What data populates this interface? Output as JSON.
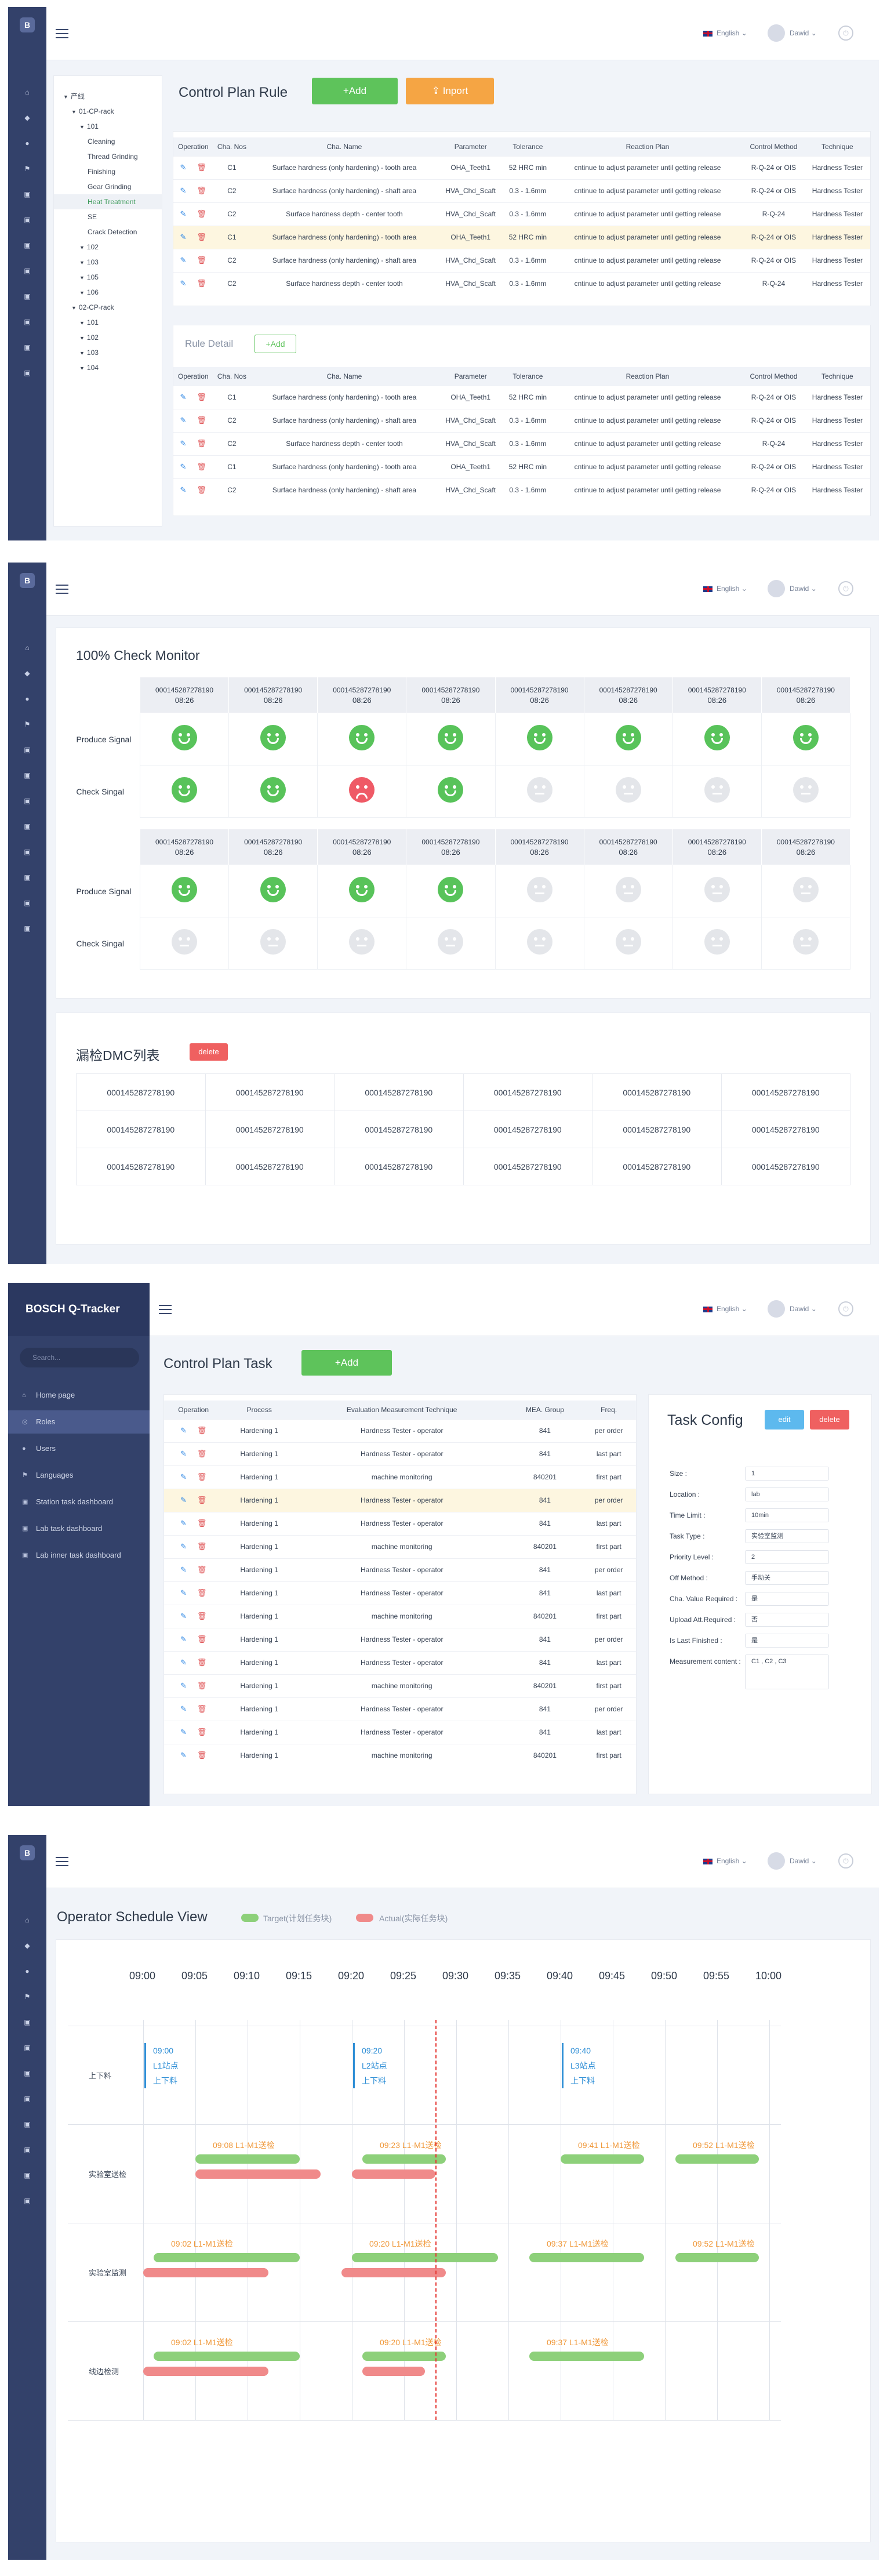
{
  "topbar": {
    "language": "English",
    "user": "Dawid"
  },
  "s1": {
    "title": "Control Plan Rule",
    "add_label": "+Add",
    "import_label": "Inport",
    "tree": [
      "产线",
      "01-CP-rack",
      "101",
      "Cleaning",
      "Thread Grinding",
      "Finishing",
      "Gear Grinding",
      "Heat Treatment",
      "SE",
      "Crack Detection",
      "102",
      "103",
      "105",
      "106",
      "02-CP-rack",
      "101",
      "102",
      "103",
      "104"
    ],
    "columns": [
      "Operation",
      "Cha. Nos",
      "Cha. Name",
      "Parameter",
      "Tolerance",
      "Reaction Plan",
      "Control Method",
      "Technique"
    ],
    "rows": [
      [
        "C1",
        "Surface hardness (only hardening) - tooth area",
        "OHA_Teeth1",
        "52 HRC min",
        "cntinue to adjust parameter until getting release",
        "R-Q-24 or OIS",
        "Hardness Tester"
      ],
      [
        "C2",
        "Surface hardness (only hardening) - shaft area",
        "HVA_Chd_Scaft",
        "0.3 - 1.6mm",
        "cntinue to adjust parameter until getting release",
        "R-Q-24 or OIS",
        "Hardness Tester"
      ],
      [
        "C2",
        "Surface hardness depth - center tooth",
        "HVA_Chd_Scaft",
        "0.3 - 1.6mm",
        "cntinue to adjust parameter until getting release",
        "R-Q-24",
        "Hardness Tester"
      ],
      [
        "C1",
        "Surface hardness (only hardening) - tooth area",
        "OHA_Teeth1",
        "52 HRC min",
        "cntinue to adjust parameter until getting release",
        "R-Q-24 or OIS",
        "Hardness Tester"
      ],
      [
        "C2",
        "Surface hardness (only hardening) - shaft area",
        "HVA_Chd_Scaft",
        "0.3 - 1.6mm",
        "cntinue to adjust parameter until getting release",
        "R-Q-24 or OIS",
        "Hardness Tester"
      ],
      [
        "C2",
        "Surface hardness depth - center tooth",
        "HVA_Chd_Scaft",
        "0.3 - 1.6mm",
        "cntinue to adjust parameter until getting release",
        "R-Q-24",
        "Hardness Tester"
      ]
    ],
    "detail_title": "Rule Detail",
    "detail_add": "+Add",
    "detail_rows": [
      [
        "C1",
        "Surface hardness (only hardening) - tooth area",
        "OHA_Teeth1",
        "52 HRC min",
        "cntinue to adjust parameter until getting release",
        "R-Q-24 or OIS",
        "Hardness Tester"
      ],
      [
        "C2",
        "Surface hardness (only hardening) - shaft area",
        "HVA_Chd_Scaft",
        "0.3 - 1.6mm",
        "cntinue to adjust parameter until getting release",
        "R-Q-24 or OIS",
        "Hardness Tester"
      ],
      [
        "C2",
        "Surface hardness depth - center tooth",
        "HVA_Chd_Scaft",
        "0.3 - 1.6mm",
        "cntinue to adjust parameter until getting release",
        "R-Q-24",
        "Hardness Tester"
      ],
      [
        "C1",
        "Surface hardness (only hardening) - tooth area",
        "OHA_Teeth1",
        "52 HRC min",
        "cntinue to adjust parameter until getting release",
        "R-Q-24 or OIS",
        "Hardness Tester"
      ],
      [
        "C2",
        "Surface hardness (only hardening) - shaft area",
        "HVA_Chd_Scaft",
        "0.3 - 1.6mm",
        "cntinue to adjust parameter until getting release",
        "R-Q-24 or OIS",
        "Hardness Tester"
      ]
    ]
  },
  "s2": {
    "title": "100% Check Monitor",
    "dmc": "000145287278190",
    "time": "08:26",
    "produce_label": "Produce Signal",
    "check_label": "Check Singal",
    "grid1": {
      "produce": [
        "g",
        "g",
        "g",
        "g",
        "g",
        "g",
        "g",
        "g"
      ],
      "check": [
        "g",
        "g",
        "r",
        "g",
        "n",
        "n",
        "n",
        "n"
      ]
    },
    "grid2": {
      "produce": [
        "g",
        "g",
        "g",
        "g",
        "n",
        "n",
        "n",
        "n"
      ],
      "check": [
        "n",
        "n",
        "n",
        "n",
        "n",
        "n",
        "n",
        "n"
      ]
    },
    "dmc_title": "漏检DMC列表",
    "delete_label": "delete"
  },
  "s3": {
    "brand": "BOSCH Q-Tracker",
    "search_placeholder": "Search...",
    "menu": [
      "Home page",
      "Roles",
      "Users",
      "Languages",
      "Station task dashboard",
      "Lab task dashboard",
      "Lab inner task dashboard"
    ],
    "title": "Control Plan Task",
    "add_label": "+Add",
    "columns": [
      "Operation",
      "Process",
      "Evaluation Measurement Technique",
      "MEA. Group",
      "Freq."
    ],
    "rows": [
      [
        "Hardening 1",
        "Hardness Tester - operator",
        "841",
        "per order"
      ],
      [
        "Hardening 1",
        "Hardness Tester - operator",
        "841",
        "last part"
      ],
      [
        "Hardening 1",
        "machine monitoring",
        "840201",
        "first part"
      ],
      [
        "Hardening 1",
        "Hardness Tester - operator",
        "841",
        "per order"
      ],
      [
        "Hardening 1",
        "Hardness Tester - operator",
        "841",
        "last part"
      ],
      [
        "Hardening 1",
        "machine monitoring",
        "840201",
        "first part"
      ],
      [
        "Hardening 1",
        "Hardness Tester - operator",
        "841",
        "per order"
      ],
      [
        "Hardening 1",
        "Hardness Tester - operator",
        "841",
        "last part"
      ],
      [
        "Hardening 1",
        "machine monitoring",
        "840201",
        "first part"
      ],
      [
        "Hardening 1",
        "Hardness Tester - operator",
        "841",
        "per order"
      ],
      [
        "Hardening 1",
        "Hardness Tester - operator",
        "841",
        "last part"
      ],
      [
        "Hardening 1",
        "machine monitoring",
        "840201",
        "first part"
      ],
      [
        "Hardening 1",
        "Hardness Tester - operator",
        "841",
        "per order"
      ],
      [
        "Hardening 1",
        "Hardness Tester - operator",
        "841",
        "last part"
      ],
      [
        "Hardening 1",
        "machine monitoring",
        "840201",
        "first part"
      ]
    ],
    "config_title": "Task Config",
    "edit_label": "edit",
    "delete_label": "delete",
    "fields": [
      [
        "Size :",
        "1"
      ],
      [
        "Location :",
        "lab"
      ],
      [
        "Time Limit :",
        "10min"
      ],
      [
        "Task Type :",
        "实验室监测"
      ],
      [
        "Priority Level :",
        "2"
      ],
      [
        "Off Method :",
        "手动关"
      ],
      [
        "Cha. Value Required :",
        "是"
      ],
      [
        "Upload Att.Required :",
        "否"
      ],
      [
        "Is Last Finished :",
        "是"
      ],
      [
        "Measurement content :",
        "C1 , C2 , C3"
      ]
    ]
  },
  "s4": {
    "title": "Operator Schedule View",
    "legend_target": "Target(计划任务块)",
    "legend_actual": "Actual(实际任务块)",
    "times": [
      "09:00",
      "09:05",
      "09:10",
      "09:15",
      "09:20",
      "09:25",
      "09:30",
      "09:35",
      "09:40",
      "09:45",
      "09:50",
      "09:55",
      "10:00"
    ],
    "rows": [
      "上下料",
      "实验室送检",
      "实验室监测",
      "线边检测"
    ],
    "events": [
      {
        "t": "09:00",
        "lines": [
          "09:00",
          "L1站点",
          "上下料"
        ]
      },
      {
        "t": "09:20",
        "lines": [
          "09:20",
          "L2站点",
          "上下料"
        ]
      },
      {
        "t": "09:40",
        "lines": [
          "09:40",
          "L3站点",
          "上下料"
        ]
      }
    ],
    "current_time": "09:28",
    "tasks": [
      {
        "row": 1,
        "label": "09:08  L1-M1送检",
        "target": [
          5,
          15
        ],
        "actual": [
          5,
          17
        ]
      },
      {
        "row": 1,
        "label": "09:23  L1-M1送检",
        "target": [
          21,
          29
        ],
        "actual": [
          20,
          28
        ]
      },
      {
        "row": 1,
        "label": "09:41  L1-M1送检",
        "target": [
          40,
          48
        ],
        "actual": null
      },
      {
        "row": 1,
        "label": "09:52  L1-M1送检",
        "target": [
          51,
          59
        ],
        "actual": null
      },
      {
        "row": 2,
        "label": "09:02  L1-M1送检",
        "target": [
          1,
          15
        ],
        "actual": [
          0,
          12
        ]
      },
      {
        "row": 2,
        "label": "09:20  L1-M1送检",
        "target": [
          20,
          34
        ],
        "actual": [
          19,
          29
        ]
      },
      {
        "row": 2,
        "label": "09:37  L1-M1送检",
        "target": [
          37,
          48
        ],
        "actual": null
      },
      {
        "row": 2,
        "label": "09:52  L1-M1送检",
        "target": [
          51,
          59
        ],
        "actual": null
      },
      {
        "row": 3,
        "label": "09:02  L1-M1送检",
        "target": [
          1,
          15
        ],
        "actual": [
          0,
          12
        ]
      },
      {
        "row": 3,
        "label": "09:20  L1-M1送检",
        "target": [
          21,
          29
        ],
        "actual": [
          21,
          27
        ]
      },
      {
        "row": 3,
        "label": "09:37  L1-M1送检",
        "target": [
          37,
          48
        ],
        "actual": null
      }
    ]
  }
}
